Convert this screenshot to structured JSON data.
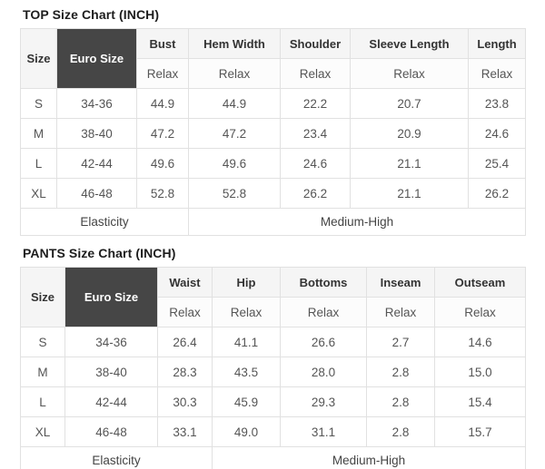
{
  "colors": {
    "euro_size_cell_bg": "#464646",
    "euro_size_cell_text": "#ffffff",
    "header_cell_bg": "#f5f5f5",
    "relax_cell_bg": "#fcfcfc",
    "border": "#e1e1e1",
    "title_text": "#1d1d1d",
    "data_text": "#555555"
  },
  "tables": [
    {
      "title": "TOP Size Chart (INCH)",
      "size_header": "Size",
      "euro_header": "Euro Size",
      "columns": [
        {
          "label": "Bust",
          "fit": "Relax"
        },
        {
          "label": "Hem Width",
          "fit": "Relax"
        },
        {
          "label": "Shoulder",
          "fit": "Relax"
        },
        {
          "label": "Sleeve Length",
          "fit": "Relax"
        },
        {
          "label": "Length",
          "fit": "Relax"
        }
      ],
      "rows": [
        {
          "size": "S",
          "euro": "34-36",
          "values": [
            "44.9",
            "44.9",
            "22.2",
            "20.7",
            "23.8"
          ]
        },
        {
          "size": "M",
          "euro": "38-40",
          "values": [
            "47.2",
            "47.2",
            "23.4",
            "20.9",
            "24.6"
          ]
        },
        {
          "size": "L",
          "euro": "42-44",
          "values": [
            "49.6",
            "49.6",
            "24.6",
            "21.1",
            "25.4"
          ]
        },
        {
          "size": "XL",
          "euro": "46-48",
          "values": [
            "52.8",
            "52.8",
            "26.2",
            "21.1",
            "26.2"
          ]
        }
      ],
      "footer": {
        "label": "Elasticity",
        "value": "Medium-High"
      }
    },
    {
      "title": "PANTS Size Chart (INCH)",
      "size_header": "Size",
      "euro_header": "Euro Size",
      "columns": [
        {
          "label": "Waist",
          "fit": "Relax"
        },
        {
          "label": "Hip",
          "fit": "Relax"
        },
        {
          "label": "Bottoms",
          "fit": "Relax"
        },
        {
          "label": "Inseam",
          "fit": "Relax"
        },
        {
          "label": "Outseam",
          "fit": "Relax"
        }
      ],
      "rows": [
        {
          "size": "S",
          "euro": "34-36",
          "values": [
            "26.4",
            "41.1",
            "26.6",
            "2.7",
            "14.6"
          ]
        },
        {
          "size": "M",
          "euro": "38-40",
          "values": [
            "28.3",
            "43.5",
            "28.0",
            "2.8",
            "15.0"
          ]
        },
        {
          "size": "L",
          "euro": "42-44",
          "values": [
            "30.3",
            "45.9",
            "29.3",
            "2.8",
            "15.4"
          ]
        },
        {
          "size": "XL",
          "euro": "46-48",
          "values": [
            "33.1",
            "49.0",
            "31.1",
            "2.8",
            "15.7"
          ]
        }
      ],
      "footer": {
        "label": "Elasticity",
        "value": "Medium-High"
      }
    }
  ]
}
